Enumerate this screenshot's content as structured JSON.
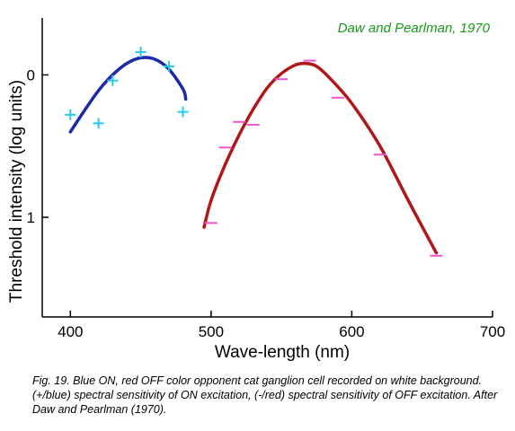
{
  "chart_data": {
    "type": "scatter",
    "title": "",
    "xlabel": "Wave-length (nm)",
    "ylabel": "Threshold intensity (log units)",
    "xlim": [
      380,
      700
    ],
    "ylim": [
      -0.4,
      1.7
    ],
    "y_inverted": true,
    "grid": false,
    "x_ticks": [
      400,
      500,
      600,
      700
    ],
    "y_ticks": [
      0,
      1
    ],
    "x_tick_labels": [
      "400",
      "500",
      "600",
      "700"
    ],
    "y_tick_labels": [
      "0",
      "1"
    ],
    "annotation": {
      "text": "Daw and Pearlman, 1970",
      "color": "#1a9a1a"
    },
    "series": [
      {
        "marker": "+",
        "marker_color": "#22ccee",
        "curve_color": "#1a2aa8",
        "points": [
          {
            "x": 400,
            "y": 0.28
          },
          {
            "x": 420,
            "y": 0.34
          },
          {
            "x": 430,
            "y": 0.04
          },
          {
            "x": 450,
            "y": -0.16
          },
          {
            "x": 470,
            "y": -0.06
          },
          {
            "x": 480,
            "y": 0.26
          }
        ],
        "curve": [
          {
            "x": 400,
            "y": 0.4
          },
          {
            "x": 410,
            "y": 0.25
          },
          {
            "x": 420,
            "y": 0.11
          },
          {
            "x": 430,
            "y": 0.0
          },
          {
            "x": 440,
            "y": -0.08
          },
          {
            "x": 450,
            "y": -0.12
          },
          {
            "x": 460,
            "y": -0.11
          },
          {
            "x": 470,
            "y": -0.04
          },
          {
            "x": 480,
            "y": 0.1
          },
          {
            "x": 482,
            "y": 0.17
          }
        ]
      },
      {
        "marker": "-",
        "marker_color": "#ee55cc",
        "curve_color": "#b01818",
        "points": [
          {
            "x": 500,
            "y": 1.04
          },
          {
            "x": 510,
            "y": 0.51
          },
          {
            "x": 520,
            "y": 0.33
          },
          {
            "x": 530,
            "y": 0.35
          },
          {
            "x": 550,
            "y": 0.03
          },
          {
            "x": 570,
            "y": -0.1
          },
          {
            "x": 590,
            "y": 0.16
          },
          {
            "x": 620,
            "y": 0.56
          },
          {
            "x": 660,
            "y": 1.27
          }
        ],
        "curve": [
          {
            "x": 495,
            "y": 1.07
          },
          {
            "x": 500,
            "y": 0.88
          },
          {
            "x": 510,
            "y": 0.63
          },
          {
            "x": 520,
            "y": 0.42
          },
          {
            "x": 530,
            "y": 0.24
          },
          {
            "x": 540,
            "y": 0.09
          },
          {
            "x": 550,
            "y": -0.01
          },
          {
            "x": 560,
            "y": -0.07
          },
          {
            "x": 567,
            "y": -0.08
          },
          {
            "x": 575,
            "y": -0.06
          },
          {
            "x": 585,
            "y": 0.03
          },
          {
            "x": 600,
            "y": 0.2
          },
          {
            "x": 620,
            "y": 0.5
          },
          {
            "x": 640,
            "y": 0.88
          },
          {
            "x": 660,
            "y": 1.25
          }
        ]
      }
    ]
  },
  "caption": "Fig. 19. Blue ON, red OFF color opponent cat ganglion cell recorded on white background. (+/blue) spectral sensitivity of ON excitation, (-/red) spectral sensitivity of OFF excitation. After Daw and Pearlman (1970)."
}
